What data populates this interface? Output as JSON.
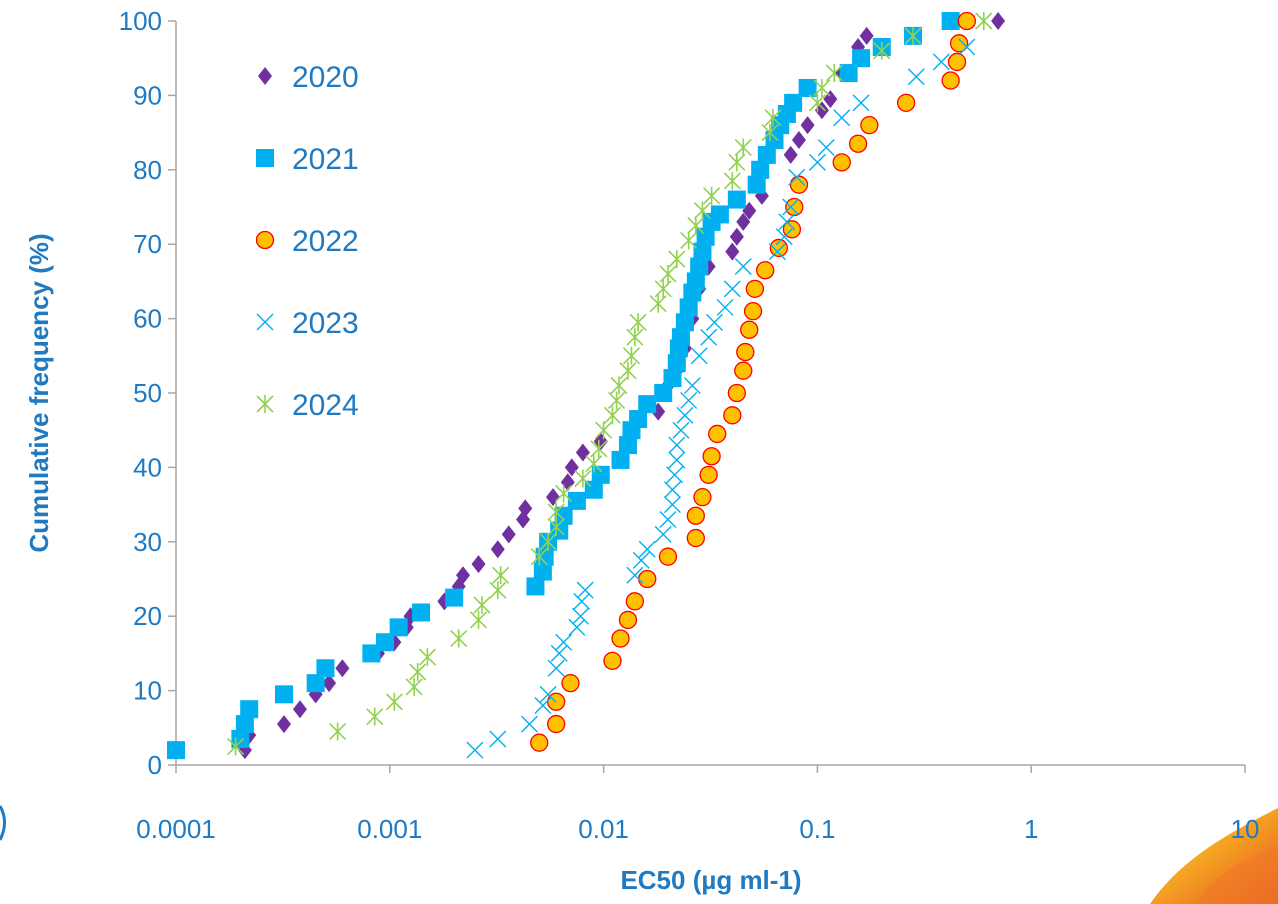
{
  "chart_data": {
    "type": "scatter",
    "title": "",
    "xlabel": "EC50 (µg ml-1)",
    "ylabel": "Cumulative frequency (%)",
    "x_scale": "log",
    "xlim": [
      0.0001,
      10
    ],
    "ylim": [
      0,
      100
    ],
    "x_ticks": [
      0.0001,
      0.001,
      0.01,
      0.1,
      1,
      10
    ],
    "x_tick_labels": [
      "0.0001",
      "0.001",
      "0.01",
      "0.1",
      "1",
      "10"
    ],
    "y_ticks": [
      0,
      10,
      20,
      30,
      40,
      50,
      60,
      70,
      80,
      90,
      100
    ],
    "y_tick_labels": [
      "0",
      "10",
      "20",
      "30",
      "40",
      "50",
      "60",
      "70",
      "80",
      "90",
      "100"
    ],
    "grid": false,
    "legend_position": "top-left inside",
    "text_color": "#1f7ac2",
    "series": [
      {
        "name": "2020",
        "marker": "diamond",
        "color": "#7030a0",
        "points": [
          [
            0.00021,
            2
          ],
          [
            0.00022,
            4
          ],
          [
            0.00032,
            5.5
          ],
          [
            0.00038,
            7.5
          ],
          [
            0.00045,
            9.5
          ],
          [
            0.00052,
            11
          ],
          [
            0.0006,
            13
          ],
          [
            0.00088,
            15
          ],
          [
            0.00105,
            16.5
          ],
          [
            0.0012,
            18.5
          ],
          [
            0.00125,
            20
          ],
          [
            0.0018,
            22
          ],
          [
            0.0021,
            24
          ],
          [
            0.0022,
            25.5
          ],
          [
            0.0026,
            27
          ],
          [
            0.0032,
            29
          ],
          [
            0.0036,
            31
          ],
          [
            0.0042,
            33
          ],
          [
            0.0043,
            34.5
          ],
          [
            0.0058,
            36
          ],
          [
            0.0068,
            38
          ],
          [
            0.0071,
            40
          ],
          [
            0.008,
            42
          ],
          [
            0.0097,
            43.5
          ],
          [
            0.018,
            47.5
          ],
          [
            0.02,
            51
          ],
          [
            0.022,
            53
          ],
          [
            0.024,
            56
          ],
          [
            0.026,
            60
          ],
          [
            0.028,
            64
          ],
          [
            0.031,
            67
          ],
          [
            0.04,
            69
          ],
          [
            0.042,
            71
          ],
          [
            0.045,
            73
          ],
          [
            0.048,
            74.5
          ],
          [
            0.055,
            76.5
          ],
          [
            0.075,
            82
          ],
          [
            0.082,
            84
          ],
          [
            0.09,
            86
          ],
          [
            0.105,
            88
          ],
          [
            0.115,
            89.5
          ],
          [
            0.13,
            93
          ],
          [
            0.155,
            96.5
          ],
          [
            0.17,
            98
          ],
          [
            0.7,
            100
          ]
        ]
      },
      {
        "name": "2021",
        "marker": "square",
        "color": "#00b0f0",
        "points": [
          [
            0.0001,
            2
          ],
          [
            0.0002,
            3.5
          ],
          [
            0.00021,
            5.5
          ],
          [
            0.00022,
            7.5
          ],
          [
            0.00032,
            9.5
          ],
          [
            0.00045,
            11
          ],
          [
            0.0005,
            13
          ],
          [
            0.00082,
            15
          ],
          [
            0.00095,
            16.5
          ],
          [
            0.0011,
            18.5
          ],
          [
            0.0014,
            20.5
          ],
          [
            0.002,
            22.5
          ],
          [
            0.0048,
            24
          ],
          [
            0.0052,
            26
          ],
          [
            0.0053,
            28
          ],
          [
            0.0055,
            30
          ],
          [
            0.0062,
            31.5
          ],
          [
            0.0065,
            33.5
          ],
          [
            0.0075,
            35.5
          ],
          [
            0.009,
            37
          ],
          [
            0.0097,
            39
          ],
          [
            0.012,
            41
          ],
          [
            0.013,
            43
          ],
          [
            0.0135,
            45
          ],
          [
            0.0145,
            46.5
          ],
          [
            0.016,
            48.5
          ],
          [
            0.019,
            50
          ],
          [
            0.021,
            52
          ],
          [
            0.022,
            54
          ],
          [
            0.0225,
            56
          ],
          [
            0.023,
            57.5
          ],
          [
            0.024,
            59.5
          ],
          [
            0.025,
            61.5
          ],
          [
            0.026,
            63.5
          ],
          [
            0.027,
            65
          ],
          [
            0.028,
            67
          ],
          [
            0.029,
            69
          ],
          [
            0.03,
            71
          ],
          [
            0.032,
            73
          ],
          [
            0.035,
            74
          ],
          [
            0.042,
            76
          ],
          [
            0.052,
            78
          ],
          [
            0.054,
            80
          ],
          [
            0.058,
            82
          ],
          [
            0.063,
            84
          ],
          [
            0.067,
            86
          ],
          [
            0.072,
            87.5
          ],
          [
            0.077,
            89
          ],
          [
            0.09,
            91
          ],
          [
            0.14,
            93
          ],
          [
            0.16,
            95
          ],
          [
            0.2,
            96.5
          ],
          [
            0.28,
            98
          ],
          [
            0.42,
            100
          ]
        ]
      },
      {
        "name": "2022",
        "marker": "circle",
        "color": "#ffc000",
        "points": [
          [
            0.005,
            3
          ],
          [
            0.006,
            5.5
          ],
          [
            0.006,
            8.5
          ],
          [
            0.007,
            11
          ],
          [
            0.011,
            14
          ],
          [
            0.012,
            17
          ],
          [
            0.013,
            19.5
          ],
          [
            0.014,
            22
          ],
          [
            0.016,
            25
          ],
          [
            0.02,
            28
          ],
          [
            0.027,
            30.5
          ],
          [
            0.027,
            33.5
          ],
          [
            0.029,
            36
          ],
          [
            0.031,
            39
          ],
          [
            0.032,
            41.5
          ],
          [
            0.034,
            44.5
          ],
          [
            0.04,
            47
          ],
          [
            0.042,
            50
          ],
          [
            0.045,
            53
          ],
          [
            0.046,
            55.5
          ],
          [
            0.048,
            58.5
          ],
          [
            0.05,
            61
          ],
          [
            0.051,
            64
          ],
          [
            0.057,
            66.5
          ],
          [
            0.066,
            69.5
          ],
          [
            0.076,
            72
          ],
          [
            0.078,
            75
          ],
          [
            0.082,
            78
          ],
          [
            0.13,
            81
          ],
          [
            0.155,
            83.5
          ],
          [
            0.175,
            86
          ],
          [
            0.26,
            89
          ],
          [
            0.42,
            92
          ],
          [
            0.45,
            94.5
          ],
          [
            0.46,
            97
          ],
          [
            0.5,
            100
          ]
        ]
      },
      {
        "name": "2023",
        "marker": "x",
        "color": "#00b0f0",
        "points": [
          [
            0.0025,
            2
          ],
          [
            0.0032,
            3.5
          ],
          [
            0.0045,
            5.5
          ],
          [
            0.0052,
            8
          ],
          [
            0.0055,
            9.5
          ],
          [
            0.006,
            13
          ],
          [
            0.0062,
            15
          ],
          [
            0.0065,
            16.5
          ],
          [
            0.0075,
            18.5
          ],
          [
            0.0078,
            20
          ],
          [
            0.0079,
            22
          ],
          [
            0.0082,
            23.5
          ],
          [
            0.014,
            25.5
          ],
          [
            0.015,
            27.5
          ],
          [
            0.016,
            29
          ],
          [
            0.019,
            31
          ],
          [
            0.02,
            33
          ],
          [
            0.021,
            35
          ],
          [
            0.021,
            37
          ],
          [
            0.0215,
            39
          ],
          [
            0.022,
            41
          ],
          [
            0.022,
            43
          ],
          [
            0.023,
            45
          ],
          [
            0.024,
            47
          ],
          [
            0.025,
            49
          ],
          [
            0.026,
            51
          ],
          [
            0.028,
            55
          ],
          [
            0.031,
            57.5
          ],
          [
            0.033,
            59.5
          ],
          [
            0.037,
            61.5
          ],
          [
            0.04,
            64
          ],
          [
            0.045,
            67
          ],
          [
            0.065,
            69
          ],
          [
            0.07,
            71
          ],
          [
            0.072,
            73
          ],
          [
            0.075,
            75
          ],
          [
            0.08,
            79
          ],
          [
            0.1,
            81
          ],
          [
            0.11,
            83
          ],
          [
            0.13,
            87
          ],
          [
            0.16,
            89
          ],
          [
            0.29,
            92.5
          ],
          [
            0.38,
            94.5
          ],
          [
            0.5,
            96.5
          ]
        ]
      },
      {
        "name": "2024",
        "marker": "star",
        "color": "#92d050",
        "points": [
          [
            0.00019,
            2.5
          ],
          [
            0.00057,
            4.5
          ],
          [
            0.00085,
            6.5
          ],
          [
            0.00105,
            8.5
          ],
          [
            0.0013,
            10.5
          ],
          [
            0.00135,
            12.5
          ],
          [
            0.0015,
            14.5
          ],
          [
            0.0021,
            17
          ],
          [
            0.0026,
            19.5
          ],
          [
            0.0027,
            21.5
          ],
          [
            0.0032,
            23.5
          ],
          [
            0.0033,
            25.5
          ],
          [
            0.005,
            28
          ],
          [
            0.0055,
            30
          ],
          [
            0.006,
            32
          ],
          [
            0.006,
            34
          ],
          [
            0.0065,
            36.5
          ],
          [
            0.008,
            38.5
          ],
          [
            0.009,
            40.5
          ],
          [
            0.0095,
            42.5
          ],
          [
            0.01,
            45
          ],
          [
            0.011,
            47
          ],
          [
            0.0115,
            49
          ],
          [
            0.0118,
            51
          ],
          [
            0.013,
            53
          ],
          [
            0.0135,
            55
          ],
          [
            0.014,
            57.5
          ],
          [
            0.0145,
            59.5
          ],
          [
            0.018,
            62
          ],
          [
            0.019,
            64
          ],
          [
            0.02,
            66
          ],
          [
            0.022,
            68
          ],
          [
            0.025,
            70.5
          ],
          [
            0.027,
            72.5
          ],
          [
            0.029,
            74.5
          ],
          [
            0.032,
            76.5
          ],
          [
            0.04,
            78.5
          ],
          [
            0.042,
            81
          ],
          [
            0.045,
            83
          ],
          [
            0.06,
            85
          ],
          [
            0.062,
            87
          ],
          [
            0.1,
            89
          ],
          [
            0.105,
            91
          ],
          [
            0.12,
            93
          ],
          [
            0.2,
            96
          ],
          [
            0.28,
            98
          ],
          [
            0.6,
            100
          ]
        ]
      }
    ]
  }
}
